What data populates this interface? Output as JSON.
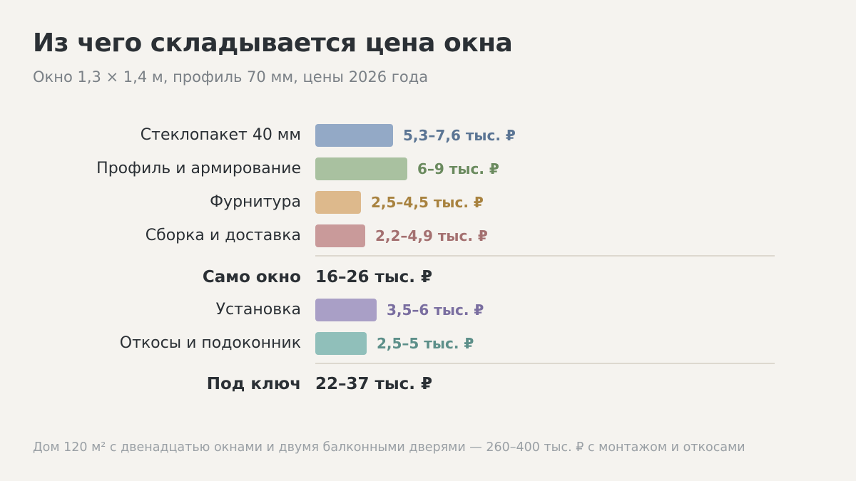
{
  "title": "Из чего складывается цена окна",
  "subtitle": "Окно 1,3 × 1,4 м, профиль 70 мм, цены 2026 года",
  "footnote": "Дом 120 м² с двенадцатью окнами и двумя балконными дверями — 260–400 тыс. ₽ с монтажом и откосами",
  "chart_data": {
    "type": "bar",
    "orientation": "horizontal",
    "unit": "тыс. ₽",
    "items": [
      {
        "label": "Стеклопакет 40 мм",
        "range": [
          5.3,
          7.6
        ],
        "value_label": "5,3–7,6 тыс. ₽",
        "color": "#93a9c6",
        "text_color": "#5b7594"
      },
      {
        "label": "Профиль и армирование",
        "range": [
          6,
          9
        ],
        "value_label": "6–9 тыс. ₽",
        "color": "#a9c1a0",
        "text_color": "#6a8a5e"
      },
      {
        "label": "Фурнитура",
        "range": [
          2.5,
          4.5
        ],
        "value_label": "2,5–4,5 тыс. ₽",
        "color": "#ddb98c",
        "text_color": "#a8823f"
      },
      {
        "label": "Сборка и доставка",
        "range": [
          2.2,
          4.9
        ],
        "value_label": "2,2–4,9 тыс. ₽",
        "color": "#c99a9a",
        "text_color": "#a47070"
      }
    ],
    "subtotal": {
      "label": "Само окно",
      "range": [
        16,
        26
      ],
      "value_label": "16–26 тыс. ₽"
    },
    "extras": [
      {
        "label": "Установка",
        "range": [
          3.5,
          6
        ],
        "value_label": "3,5–6 тыс. ₽",
        "color": "#a99fc6",
        "text_color": "#7a6ea0"
      },
      {
        "label": "Откосы и подоконник",
        "range": [
          2.5,
          5
        ],
        "value_label": "2,5–5 тыс. ₽",
        "color": "#90bfba",
        "text_color": "#5c8f89"
      }
    ],
    "total": {
      "label": "Под ключ",
      "range": [
        22,
        37
      ],
      "value_label": "22–37 тыс. ₽"
    }
  }
}
